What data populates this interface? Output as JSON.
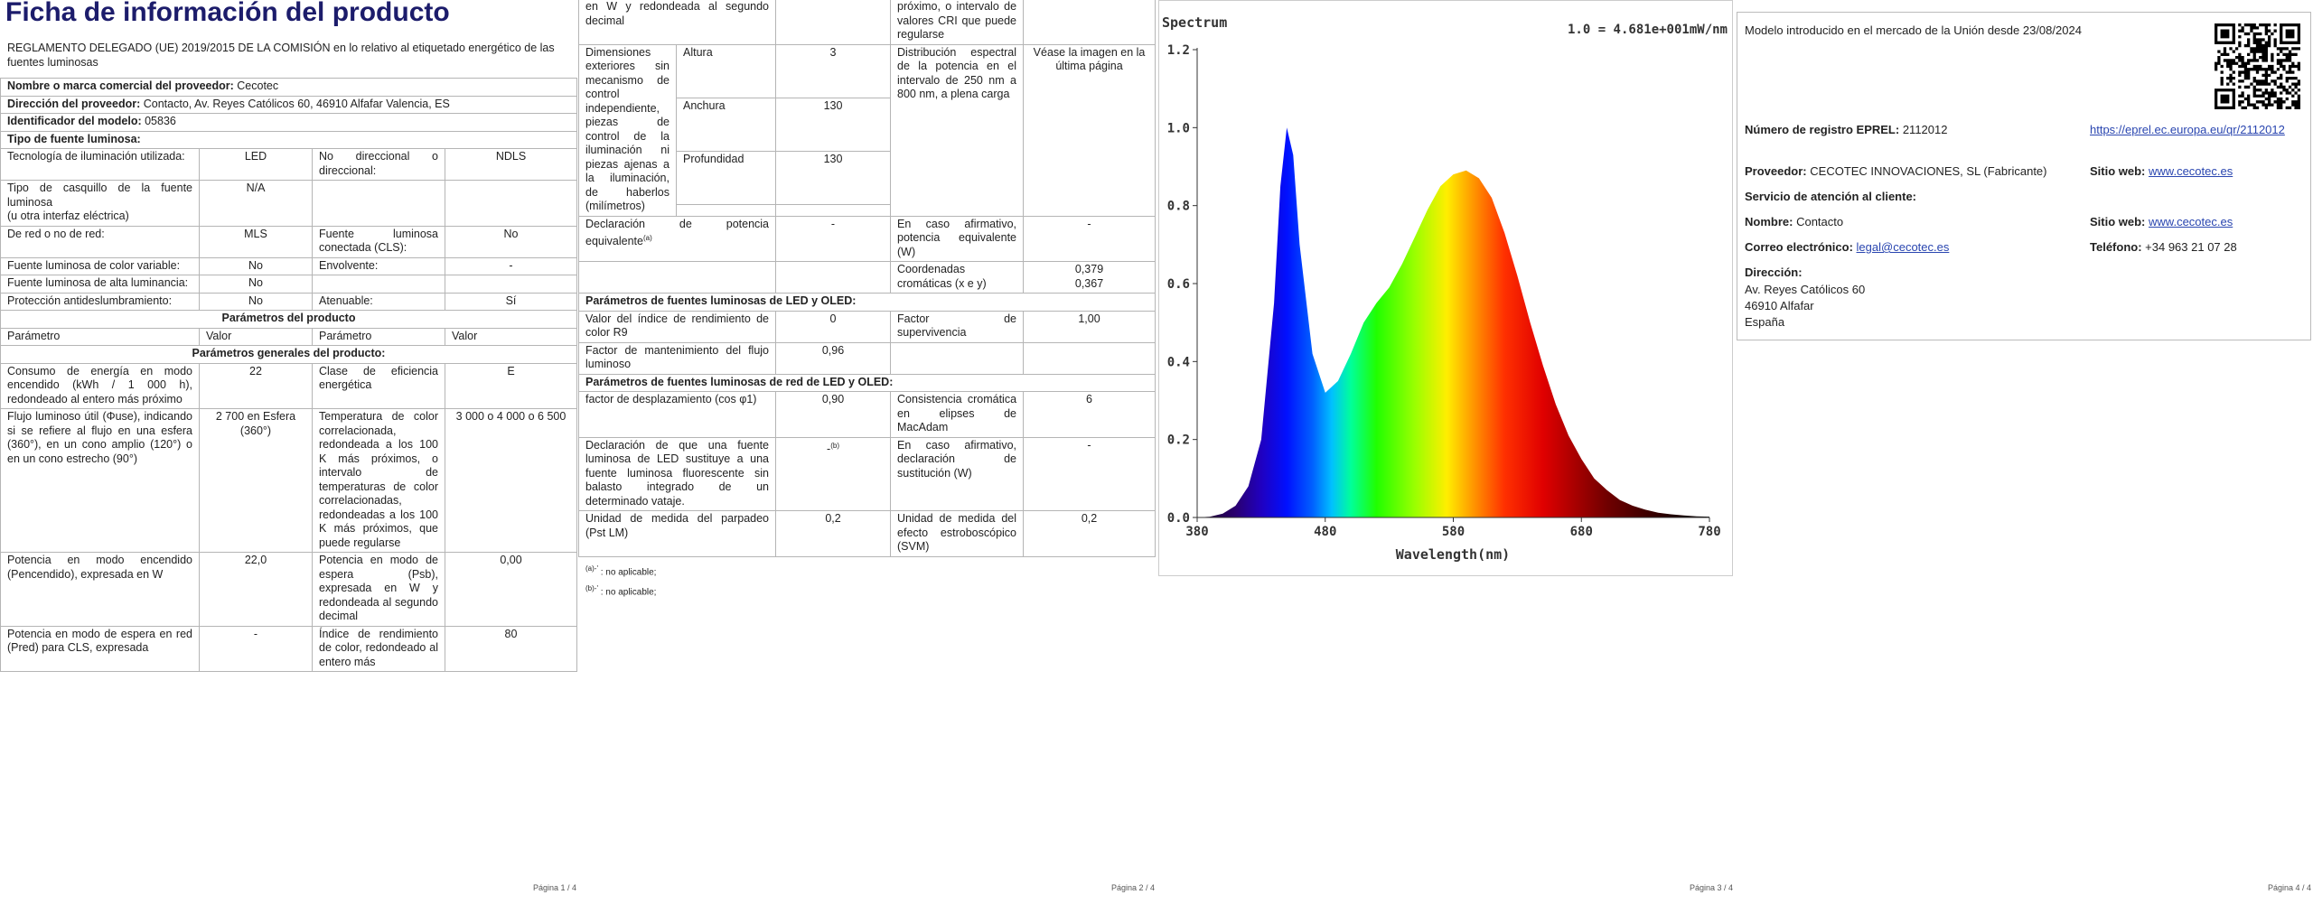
{
  "page1": {
    "title": "Ficha de información del producto",
    "regulation": "REGLAMENTO DELEGADO (UE) 2019/2015 DE LA COMISIÓN en lo relativo al etiquetado energético de las fuentes luminosas",
    "table": [
      {
        "label": "Nombre o marca comercial del proveedor:",
        "value": "Cecotec"
      },
      {
        "label": "Dirección del proveedor:",
        "value": "Contacto, Av. Reyes Católicos 60, 46910 Alfafar Valencia, ES"
      },
      {
        "label": "Identificador del modelo:",
        "value": "05836"
      },
      {
        "caption": "Tipo de fuente luminosa:",
        "centered": false
      },
      {
        "cells": [
          "Tecnología de iluminación utilizada:",
          "LED",
          "No direccional o direccional:",
          "NDLS"
        ]
      },
      {
        "cells": [
          "Tipo de casquillo de la fuente luminosa\n(u otra interfaz eléctrica)",
          "N/A",
          null,
          null
        ]
      },
      {
        "cells": [
          "De red o no de red:",
          "MLS",
          "Fuente luminosa conectada (CLS):",
          "No"
        ]
      },
      {
        "cells": [
          "Fuente luminosa de color variable:",
          "No",
          "Envolvente:",
          "-"
        ]
      },
      {
        "cells": [
          "Fuente luminosa de alta luminancia:",
          "No",
          null,
          null
        ]
      },
      {
        "cells": [
          "Protección antideslumbramiento:",
          "No",
          "Atenuable:",
          "Sí"
        ]
      },
      {
        "caption": "Parámetros del producto",
        "centered": true
      },
      {
        "cells": [
          "Parámetro",
          "Valor",
          "Parámetro",
          "Valor"
        ],
        "header": true
      },
      {
        "caption": "Parámetros generales del producto:",
        "centered": true
      },
      {
        "cells": [
          "Consumo de energía en modo encendido (kWh / 1 000 h), redondeado al entero más próximo",
          "22",
          "Clase de eficiencia energética",
          "E"
        ]
      },
      {
        "cells": [
          "Flujo luminoso útil (Φuse), indicando si se refiere al flujo en una esfera (360°), en un cono amplio (120°) o en un cono estrecho (90°)",
          "2 700 en Esfera (360°)",
          "Temperatura de color correlacionada, redondeada a los 100 K más próximos, o intervalo de temperaturas de color correlacionadas, redondeadas a los 100 K más próximos, que puede regularse",
          "3 000 o 4 000 o 6 500"
        ]
      },
      {
        "cells": [
          "Potencia en modo encendido (Pencendido), expresada en W",
          "22,0",
          "Potencia en modo de espera (Psb), expresada en W y redondeada al segundo decimal",
          "0,00"
        ]
      },
      {
        "cells": [
          "Potencia en modo de espera en red (Pred) para CLS, expresada",
          "-",
          "Índice de rendimiento de color, redondeado al entero más",
          "80"
        ]
      }
    ],
    "footer": "Página 1 / 4"
  },
  "page2": {
    "table": [
      {
        "cells": [
          "en W y redondeada al segundo decimal",
          null,
          "próximo, o intervalo de valores CRI que puede regularse",
          null
        ]
      },
      {
        "dimensions": [
          {
            "name": "Altura",
            "value": "3"
          },
          {
            "name": "Anchura",
            "value": "130"
          },
          {
            "name": "Profundidad",
            "value": "130"
          }
        ],
        "label": "Dimensiones exteriores sin mecanismo de control independiente, piezas de control de la iluminación ni piezas ajenas a la iluminación, de haberlos (milímetros)",
        "label2": "Distribución espectral de la potencia en el intervalo de 250 nm a 800 nm, a plena carga",
        "value2": "Véase la imagen en la última página"
      },
      {
        "cells": [
          {
            "text": "Declaración de potencia equivalente",
            "sup": "(a)"
          },
          "-",
          "En caso afirmativo, potencia equivalente (W)",
          "-"
        ]
      },
      {
        "cells": [
          null,
          null,
          "Coordenadas cromáticas (x e y)",
          "0,379\n0,367"
        ]
      },
      {
        "caption": "Parámetros de fuentes luminosas de LED y OLED:",
        "centered": false
      },
      {
        "cells": [
          "Valor del índice de rendimiento de color R9",
          "0",
          "Factor de supervivencia",
          "1,00"
        ]
      },
      {
        "cells": [
          "Factor de mantenimiento del flujo luminoso",
          "0,96",
          null,
          null
        ]
      },
      {
        "caption": "Parámetros de fuentes luminosas de red de LED y OLED:",
        "centered": false
      },
      {
        "cells": [
          "factor de desplazamiento (cos φ1)",
          "0,90",
          "Consistencia cromática en elipses de MacAdam",
          "6"
        ]
      },
      {
        "cells": [
          "Declaración de que una fuente luminosa de LED sustituye a una fuente luminosa fluorescente sin balasto integrado de un determinado vataje.",
          {
            "text": "-",
            "sup": "(b)"
          },
          "En caso afirmativo, declaración de sustitución (W)",
          "-"
        ]
      },
      {
        "cells": [
          "Unidad de medida del parpadeo (Pst LM)",
          "0,2",
          "Unidad de medida del efecto estroboscópico (SVM)",
          "0,2"
        ]
      }
    ],
    "notes": [
      {
        "sup": "(a)-'",
        "text": " : no aplicable;"
      },
      {
        "sup": "(b)-'",
        "text": " : no aplicable;"
      }
    ],
    "footer": "Página 2 / 4"
  },
  "page3": {
    "spectrum": {
      "type": "area",
      "title": "Spectrum",
      "annotation": "1.0 = 4.681e+001mW/nm",
      "x_label": "Wavelength(nm)",
      "x": [
        380,
        390,
        400,
        410,
        420,
        430,
        440,
        445,
        450,
        455,
        460,
        470,
        480,
        490,
        500,
        510,
        520,
        530,
        540,
        550,
        560,
        570,
        580,
        590,
        600,
        610,
        620,
        630,
        640,
        650,
        660,
        670,
        680,
        690,
        700,
        710,
        720,
        730,
        740,
        750,
        760,
        770,
        780
      ],
      "values": [
        0,
        0.002,
        0.01,
        0.03,
        0.08,
        0.2,
        0.55,
        0.85,
        1.0,
        0.93,
        0.7,
        0.42,
        0.32,
        0.35,
        0.42,
        0.5,
        0.55,
        0.59,
        0.65,
        0.72,
        0.79,
        0.85,
        0.88,
        0.89,
        0.87,
        0.82,
        0.73,
        0.62,
        0.5,
        0.39,
        0.29,
        0.21,
        0.15,
        0.1,
        0.07,
        0.045,
        0.03,
        0.02,
        0.012,
        0.008,
        0.005,
        0.003,
        0.002
      ],
      "xlim": [
        380,
        780
      ],
      "ylim": [
        0,
        1.2
      ],
      "xticks": [
        380,
        480,
        580,
        680,
        780
      ],
      "yticks": [
        {
          "value": 0,
          "label": "0.0"
        },
        {
          "value": 0.2,
          "label": "0.2"
        },
        {
          "value": 0.4,
          "label": "0.4"
        },
        {
          "value": 0.6,
          "label": "0.6"
        },
        {
          "value": 0.8,
          "label": "0.8"
        },
        {
          "value": 1,
          "label": "1.0"
        },
        {
          "value": 1.2,
          "label": "1.2"
        }
      ]
    },
    "footer": "Página 3 / 4"
  },
  "page4": {
    "market_date_text": "Modelo introducido en el mercado de la Unión desde 23/08/2024",
    "eprel_label": "Número de registro EPREL:",
    "eprel_number": "2112012",
    "eprel_link": "https://eprel.ec.europa.eu/qr/2112012",
    "supplier_label": "Proveedor:",
    "supplier": "CECOTEC INNOVACIONES, SL (Fabricante)",
    "website_label": "Sitio web:",
    "website": "www.cecotec.es",
    "service_heading": "Servicio de atención al cliente:",
    "name_label": "Nombre:",
    "name": "Contacto",
    "service_website_label": "Sitio web:",
    "service_website": "www.cecotec.es",
    "email_label": "Correo electrónico:",
    "email": "legal@cecotec.es",
    "phone_label": "Teléfono:",
    "phone": "+34 963 21 07 28",
    "address_label": "Dirección:",
    "address_lines": [
      "Av. Reyes Católicos 60",
      "46910 Alfafar",
      "España"
    ],
    "footer": "Página 4 / 4"
  }
}
